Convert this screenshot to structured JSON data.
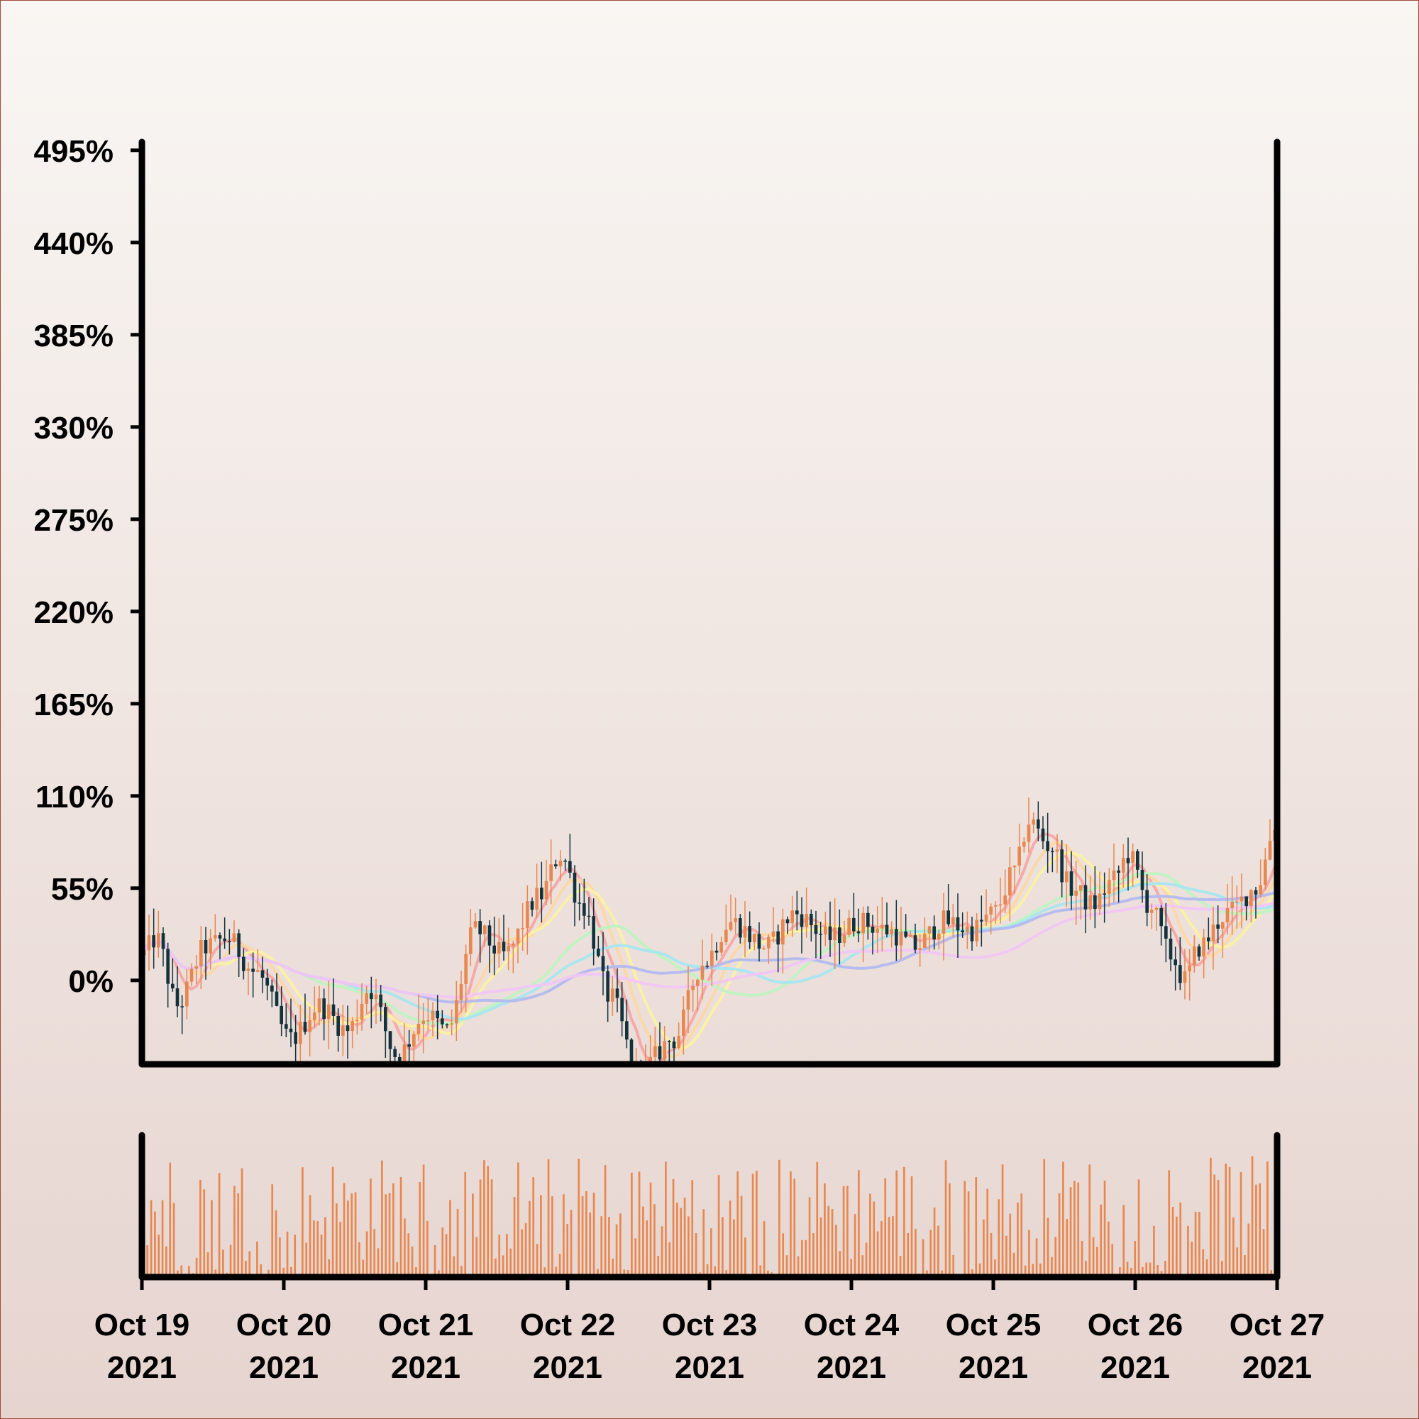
{
  "chart_data": {
    "type": "candlestick",
    "title": "",
    "xlabel": "",
    "ylabel": "",
    "y_unit": "%",
    "ylim": [
      -50,
      500
    ],
    "y_ticks": [
      "495%",
      "440%",
      "385%",
      "330%",
      "275%",
      "220%",
      "165%",
      "110%",
      "55%",
      "0%"
    ],
    "y_tick_values": [
      495,
      440,
      385,
      330,
      275,
      220,
      165,
      110,
      55,
      0
    ],
    "x_ticks": [
      {
        "line1": "Oct 19",
        "line2": "2021"
      },
      {
        "line1": "Oct 20",
        "line2": "2021"
      },
      {
        "line1": "Oct 21",
        "line2": "2021"
      },
      {
        "line1": "Oct 22",
        "line2": "2021"
      },
      {
        "line1": "Oct 23",
        "line2": "2021"
      },
      {
        "line1": "Oct 24",
        "line2": "2021"
      },
      {
        "line1": "Oct 25",
        "line2": "2021"
      },
      {
        "line1": "Oct 26",
        "line2": "2021"
      },
      {
        "line1": "Oct 27",
        "line2": "2021"
      }
    ],
    "x_range": [
      "2021-10-19",
      "2021-10-27"
    ],
    "price_path": [
      {
        "day": 0.0,
        "value": 15
      },
      {
        "day": 0.1,
        "value": 25
      },
      {
        "day": 0.25,
        "value": -15
      },
      {
        "day": 0.45,
        "value": 20
      },
      {
        "day": 0.6,
        "value": 25
      },
      {
        "day": 0.8,
        "value": 5
      },
      {
        "day": 1.05,
        "value": -35
      },
      {
        "day": 1.25,
        "value": -15
      },
      {
        "day": 1.45,
        "value": -30
      },
      {
        "day": 1.6,
        "value": -5
      },
      {
        "day": 1.8,
        "value": -45
      },
      {
        "day": 2.0,
        "value": -20
      },
      {
        "day": 2.15,
        "value": -30
      },
      {
        "day": 2.35,
        "value": 30
      },
      {
        "day": 2.55,
        "value": 15
      },
      {
        "day": 2.8,
        "value": 50
      },
      {
        "day": 2.95,
        "value": 75
      },
      {
        "day": 3.1,
        "value": 45
      },
      {
        "day": 3.3,
        "value": -10
      },
      {
        "day": 3.5,
        "value": -55
      },
      {
        "day": 3.75,
        "value": -35
      },
      {
        "day": 3.95,
        "value": 10
      },
      {
        "day": 4.15,
        "value": 35
      },
      {
        "day": 4.4,
        "value": 20
      },
      {
        "day": 4.6,
        "value": 40
      },
      {
        "day": 4.85,
        "value": 25
      },
      {
        "day": 5.05,
        "value": 35
      },
      {
        "day": 5.25,
        "value": 30
      },
      {
        "day": 5.45,
        "value": 20
      },
      {
        "day": 5.65,
        "value": 35
      },
      {
        "day": 5.85,
        "value": 30
      },
      {
        "day": 6.0,
        "value": 40
      },
      {
        "day": 6.15,
        "value": 65
      },
      {
        "day": 6.25,
        "value": 95
      },
      {
        "day": 6.4,
        "value": 80
      },
      {
        "day": 6.55,
        "value": 55
      },
      {
        "day": 6.7,
        "value": 45
      },
      {
        "day": 6.85,
        "value": 60
      },
      {
        "day": 6.95,
        "value": 75
      },
      {
        "day": 7.1,
        "value": 45
      },
      {
        "day": 7.25,
        "value": 15
      },
      {
        "day": 7.35,
        "value": 0
      },
      {
        "day": 7.45,
        "value": 20
      },
      {
        "day": 7.65,
        "value": 40
      },
      {
        "day": 7.85,
        "value": 55
      },
      {
        "day": 8.0,
        "value": 95
      }
    ],
    "moving_averages": [
      {
        "color": "#f5a6a6",
        "smooth": 0.06
      },
      {
        "color": "#fcd7a4",
        "smooth": 0.1
      },
      {
        "color": "#fbf1a4",
        "smooth": 0.15
      },
      {
        "color": "#bff3c1",
        "smooth": 0.35
      },
      {
        "color": "#a8e6f0",
        "smooth": 0.45
      },
      {
        "color": "#b3b9ef",
        "smooth": 0.6
      },
      {
        "color": "#f1c6f5",
        "smooth": 0.85
      }
    ],
    "colors": {
      "up": "#e8874f",
      "down": "#13323c",
      "volume": "#e8874f",
      "axis": "#000000"
    },
    "volume": {
      "ylim": [
        0,
        100
      ],
      "pattern": "random-daily"
    },
    "grid": false,
    "legend": "none"
  }
}
